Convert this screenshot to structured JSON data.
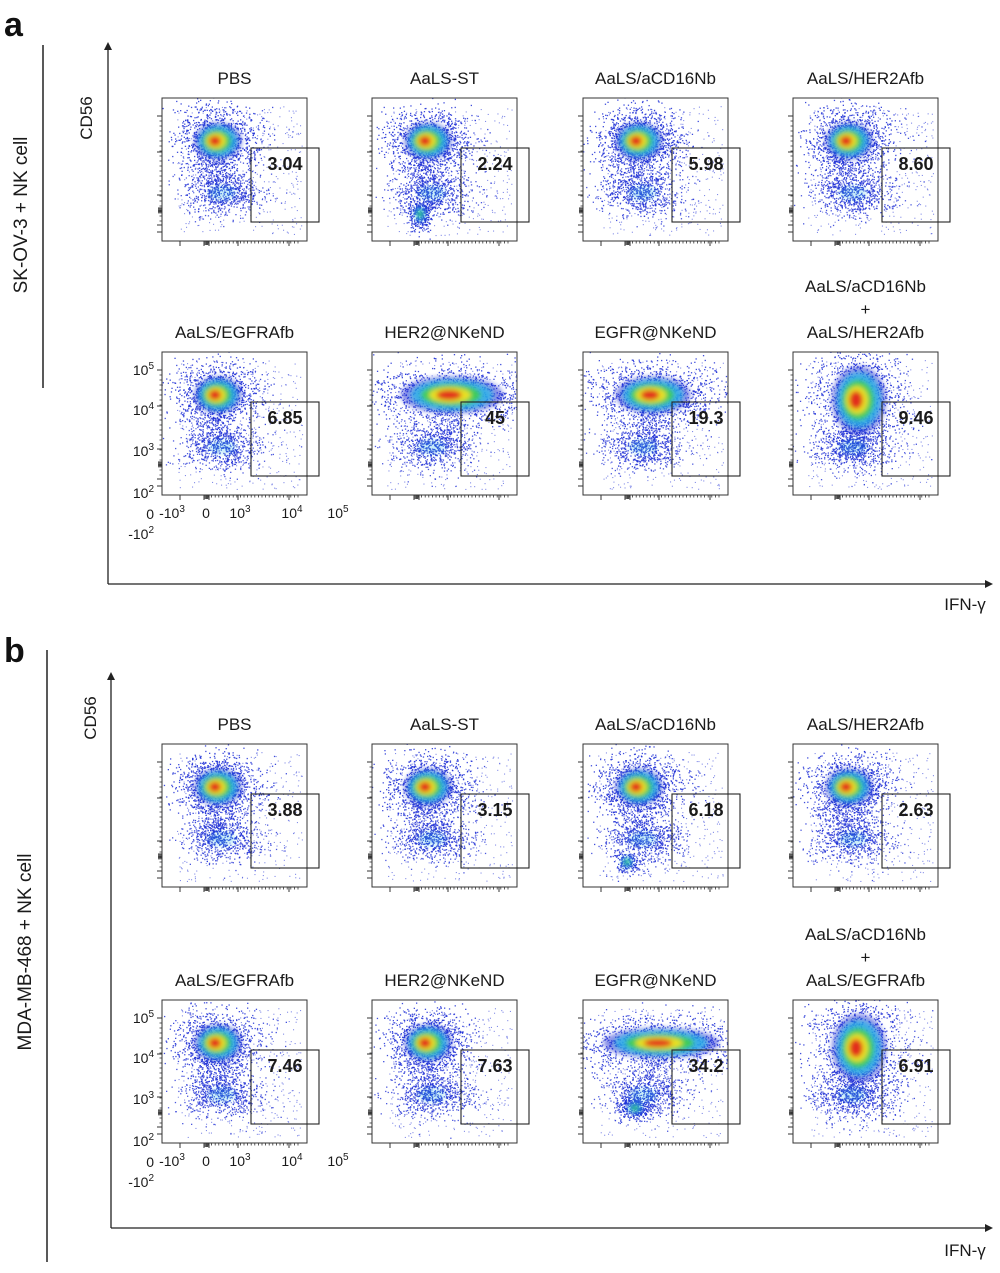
{
  "figure": {
    "panels": [
      {
        "letter": "a",
        "row_label": "SK-OV-3 + NK cell",
        "y_axis_label": "CD56",
        "x_axis_label": "IFN-γ",
        "plots": [
          {
            "title": [
              "PBS"
            ],
            "gate_value": "3.04"
          },
          {
            "title": [
              "AaLS-ST"
            ],
            "gate_value": "2.24"
          },
          {
            "title": [
              "AaLS/aCD16Nb"
            ],
            "gate_value": "5.98"
          },
          {
            "title": [
              "AaLS/HER2Afb"
            ],
            "gate_value": "8.60"
          },
          {
            "title": [
              "AaLS/EGFRAfb"
            ],
            "gate_value": "6.85"
          },
          {
            "title": [
              "HER2@NKeND"
            ],
            "gate_value": "45"
          },
          {
            "title": [
              "EGFR@NKeND"
            ],
            "gate_value": "19.3"
          },
          {
            "title": [
              "AaLS/aCD16Nb",
              "+",
              "AaLS/HER2Afb"
            ],
            "gate_value": "9.46"
          }
        ]
      },
      {
        "letter": "b",
        "row_label": "MDA-MB-468 + NK cell",
        "y_axis_label": "CD56",
        "x_axis_label": "IFN-γ",
        "plots": [
          {
            "title": [
              "PBS"
            ],
            "gate_value": "3.88"
          },
          {
            "title": [
              "AaLS-ST"
            ],
            "gate_value": "3.15"
          },
          {
            "title": [
              "AaLS/aCD16Nb"
            ],
            "gate_value": "6.18"
          },
          {
            "title": [
              "AaLS/HER2Afb"
            ],
            "gate_value": "2.63"
          },
          {
            "title": [
              "AaLS/EGFRAfb"
            ],
            "gate_value": "7.46"
          },
          {
            "title": [
              "HER2@NKeND"
            ],
            "gate_value": "7.63"
          },
          {
            "title": [
              "EGFR@NKeND"
            ],
            "gate_value": "34.2"
          },
          {
            "title": [
              "AaLS/aCD16Nb",
              "+",
              "AaLS/EGFRAfb"
            ],
            "gate_value": "6.91"
          }
        ]
      }
    ],
    "x_tick_labels": [
      {
        "base": "-10",
        "exp": "3"
      },
      {
        "base": "0",
        "exp": ""
      },
      {
        "base": "10",
        "exp": "3"
      },
      {
        "base": "10",
        "exp": "4"
      },
      {
        "base": "10",
        "exp": "5"
      }
    ],
    "y_tick_labels": [
      {
        "base": "10",
        "exp": "5"
      },
      {
        "base": "10",
        "exp": "4"
      },
      {
        "base": "10",
        "exp": "3"
      },
      {
        "base": "10",
        "exp": "2"
      },
      {
        "base": "0",
        "exp": ""
      },
      {
        "base": "-10",
        "exp": "2"
      }
    ],
    "colors": {
      "density_low": "#1f2fd6",
      "density_mid_low": "#29b7e8",
      "density_mid": "#3fcf4a",
      "density_mid_high": "#f2e21d",
      "density_high": "#e2231a",
      "axis": "#222222",
      "frame": "#333333"
    }
  },
  "chart_data": {
    "type": "scatter",
    "subtype": "flow cytometry density plots with gates",
    "x_label": "IFN-γ",
    "y_label": "CD56",
    "x_scale": "biexponential",
    "y_scale": "biexponential",
    "x_ticks": [
      "-10^3",
      "0",
      "10^3",
      "10^4",
      "10^5"
    ],
    "y_ticks": [
      "10^5",
      "10^4",
      "10^3",
      "10^2",
      "0",
      "-10^2"
    ],
    "gate": "IFN-γ+ CD56+ rectangle",
    "gate_value_unit": "% of cells",
    "series": [
      {
        "name": "SK-OV-3 + NK cell",
        "categories": [
          "PBS",
          "AaLS-ST",
          "AaLS/aCD16Nb",
          "AaLS/HER2Afb",
          "AaLS/EGFRAfb",
          "HER2@NKeND",
          "EGFR@NKeND",
          "AaLS/aCD16Nb + AaLS/HER2Afb"
        ],
        "values": [
          3.04,
          2.24,
          5.98,
          8.6,
          6.85,
          45,
          19.3,
          9.46
        ]
      },
      {
        "name": "MDA-MB-468 + NK cell",
        "categories": [
          "PBS",
          "AaLS-ST",
          "AaLS/aCD16Nb",
          "AaLS/HER2Afb",
          "AaLS/EGFRAfb",
          "HER2@NKeND",
          "EGFR@NKeND",
          "AaLS/aCD16Nb + AaLS/EGFRAfb"
        ],
        "values": [
          3.88,
          3.15,
          6.18,
          2.63,
          7.46,
          7.63,
          34.2,
          6.91
        ]
      }
    ]
  }
}
